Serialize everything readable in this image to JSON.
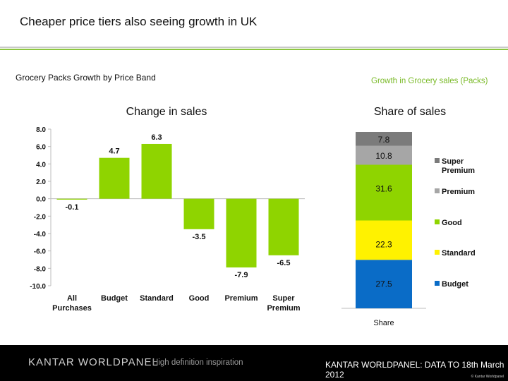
{
  "page": {
    "title": "Cheaper price tiers also seeing growth in UK"
  },
  "colors": {
    "accent": "#8cc63f",
    "rule": "#c9c9c9"
  },
  "footer": {
    "logo": "KANTAR WORLDPANEL",
    "tagline": "High definition inspiration",
    "source": "KANTAR WORLDPANEL: DATA TO 18th March 2012",
    "copyright": "© Kantar Worldpanel"
  },
  "chart_data": [
    {
      "type": "bar",
      "subtitle": "Grocery Packs Growth by Price Band",
      "title": "Change in sales",
      "categories": [
        [
          "All",
          "Purchases"
        ],
        [
          "Budget"
        ],
        [
          "Standard"
        ],
        [
          "Good"
        ],
        [
          "Premium"
        ],
        [
          "Super",
          "Premium"
        ]
      ],
      "values": [
        -0.1,
        4.7,
        6.3,
        -3.5,
        -7.9,
        -6.5
      ],
      "data_labels": [
        "-0.1",
        "4.7",
        "6.3",
        "-3.5",
        "-7.9",
        "-6.5"
      ],
      "yticks": [
        "8.0",
        "6.0",
        "4.0",
        "2.0",
        "0.0",
        "-2.0",
        "-4.0",
        "-6.0",
        "-8.0",
        "-10.0"
      ],
      "ylim": [
        -10,
        8
      ],
      "color": "#8fd400",
      "grid": false
    },
    {
      "type": "bar",
      "subtype": "stacked-100",
      "subtitle": "Growth in Grocery sales (Packs)",
      "title": "Share of sales",
      "categories": [
        "Share"
      ],
      "series": [
        {
          "name": "Budget",
          "value": 27.5,
          "label": "27.5",
          "color": "#0a6cc7"
        },
        {
          "name": "Standard",
          "value": 22.3,
          "label": "22.3",
          "color": "#fff200"
        },
        {
          "name": "Good",
          "value": 31.6,
          "label": "31.6",
          "color": "#8fd400"
        },
        {
          "name": "Premium",
          "value": 10.8,
          "label": "10.8",
          "color": "#a6a6a6"
        },
        {
          "name": "Super Premium",
          "value": 7.8,
          "label": "7.8",
          "color": "#7b7b7b"
        }
      ],
      "legend_items": [
        {
          "lines": [
            "Super",
            "Premium"
          ],
          "color": "#7b7b7b"
        },
        {
          "lines": [
            "Premium"
          ],
          "color": "#a6a6a6"
        },
        {
          "lines": [
            "Good"
          ],
          "color": "#8fd400"
        },
        {
          "lines": [
            "Standard"
          ],
          "color": "#fff200"
        },
        {
          "lines": [
            "Budget"
          ],
          "color": "#0a6cc7"
        }
      ],
      "legend": "right"
    }
  ]
}
